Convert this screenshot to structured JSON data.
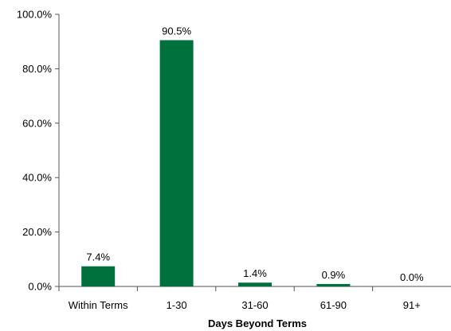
{
  "chart_data": {
    "type": "bar",
    "title": "",
    "xlabel": "Days Beyond Terms",
    "ylabel": "",
    "categories": [
      "Within Terms",
      "1-30",
      "31-60",
      "61-90",
      "91+"
    ],
    "values": [
      7.4,
      90.5,
      1.4,
      0.9,
      0.0
    ],
    "value_labels": [
      "7.4%",
      "90.5%",
      "1.4%",
      "0.9%",
      "0.0%"
    ],
    "ylim": [
      0,
      100
    ],
    "yticks": [
      0,
      20,
      40,
      60,
      80,
      100
    ],
    "ytick_labels": [
      "0.0%",
      "20.0%",
      "40.0%",
      "60.0%",
      "80.0%",
      "100.0%"
    ],
    "grid": false,
    "legend": "none",
    "bar_color": "#00703c"
  }
}
